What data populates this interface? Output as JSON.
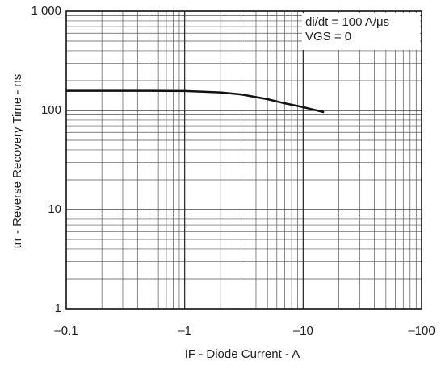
{
  "chart_data": {
    "type": "line",
    "xlabel": "IF -  Diode Current  - A",
    "ylabel": "trr -  Reverse Recovery Time - ns",
    "annotations": [
      "di/dt = 100 A/μs",
      "VGS = 0"
    ],
    "x": [
      -0.1,
      -0.2,
      -0.5,
      -1,
      -2,
      -3,
      -5,
      -7,
      -10,
      -15
    ],
    "series": [
      {
        "color": "#111111",
        "values": [
          158,
          158,
          158,
          157,
          152,
          145,
          130,
          118,
          108,
          96
        ]
      }
    ],
    "xlim": [
      -0.1,
      -100
    ],
    "ylim": [
      1,
      1000
    ],
    "xticks": [
      {
        "value": -0.1,
        "label": "–0.1"
      },
      {
        "value": -1,
        "label": "–1"
      },
      {
        "value": -10,
        "label": "–10"
      },
      {
        "value": -100,
        "label": "–100"
      }
    ],
    "yticks": [
      1,
      10,
      100,
      {
        "value": 1000,
        "label": "1 000"
      }
    ],
    "xscale": "log",
    "yscale": "log",
    "grid": true,
    "minor_grid": true
  }
}
